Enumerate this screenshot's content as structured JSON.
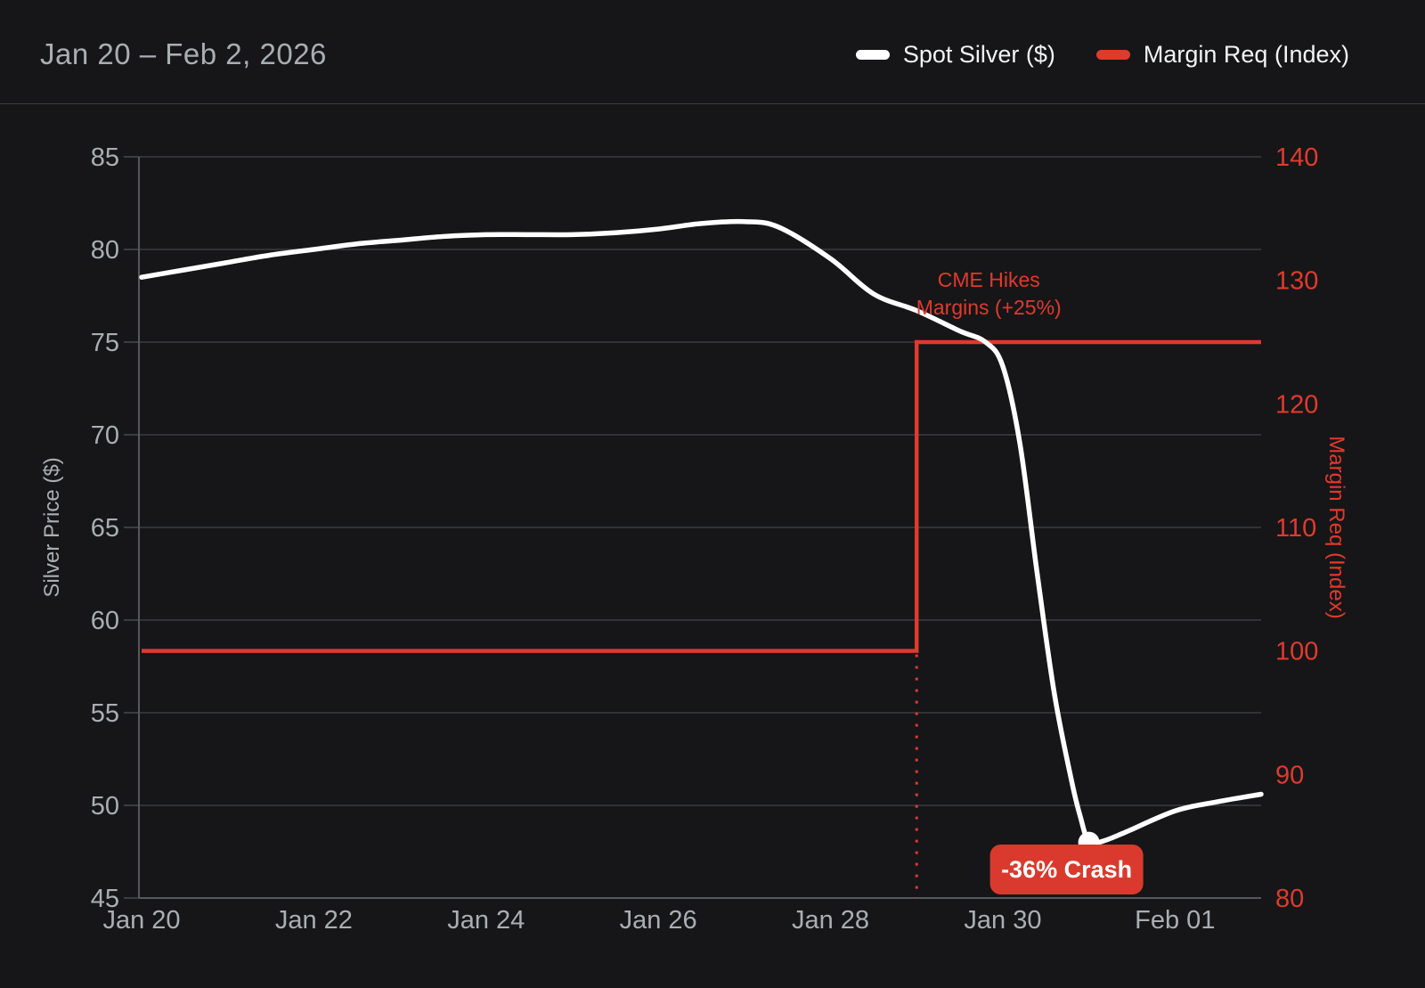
{
  "header": {
    "title": "Jan 20 – Feb 2, 2026",
    "legend": [
      {
        "label": "Spot Silver ($)",
        "color": "#ffffff"
      },
      {
        "label": "Margin Req (Index)",
        "color": "#e03a2c"
      }
    ]
  },
  "colors": {
    "background": "#161618",
    "grid": "#3a3d41",
    "axis_line": "#55585c",
    "tick_text": "#a9aeb4",
    "spot_line": "#ffffff",
    "margin_line": "#e03a2c",
    "annotation_text": "#e03a2c",
    "badge_bg": "#d93a2d",
    "badge_text": "#ffffff"
  },
  "chart_data": {
    "type": "line",
    "title": "Jan 20 – Feb 2, 2026",
    "x_axis": {
      "labels": [
        "Jan 20",
        "Jan 22",
        "Jan 24",
        "Jan 26",
        "Jan 28",
        "Jan 30",
        "Feb 01"
      ],
      "label_days": [
        0,
        2,
        4,
        6,
        8,
        10,
        12
      ],
      "domain_days": [
        0,
        13
      ],
      "start_date": "Jan 20",
      "end_date": "Feb 2"
    },
    "left_axis": {
      "title": "Silver Price ($)",
      "min": 45,
      "max": 85,
      "step": 5,
      "grid": true
    },
    "right_axis": {
      "title": "Margin Req (Index)",
      "min": 80,
      "max": 140,
      "step": 10,
      "grid": false
    },
    "series": [
      {
        "name": "Spot Silver ($)",
        "axis": "left",
        "color": "#ffffff",
        "style": "smooth",
        "points": [
          [
            0,
            78.5
          ],
          [
            0.5,
            78.9
          ],
          [
            1,
            79.3
          ],
          [
            1.5,
            79.7
          ],
          [
            2,
            80.0
          ],
          [
            2.5,
            80.3
          ],
          [
            3,
            80.5
          ],
          [
            3.5,
            80.7
          ],
          [
            4,
            80.8
          ],
          [
            4.5,
            80.8
          ],
          [
            5,
            80.8
          ],
          [
            5.5,
            80.9
          ],
          [
            6,
            81.1
          ],
          [
            6.5,
            81.4
          ],
          [
            7,
            81.5
          ],
          [
            7.4,
            81.2
          ],
          [
            8,
            79.5
          ],
          [
            8.5,
            77.6
          ],
          [
            9,
            76.7
          ],
          [
            9.5,
            75.6
          ],
          [
            9.8,
            75.0
          ],
          [
            10,
            73.7
          ],
          [
            10.2,
            69.5
          ],
          [
            10.4,
            62.5
          ],
          [
            10.6,
            56.0
          ],
          [
            10.8,
            51.3
          ],
          [
            10.9,
            49.4
          ],
          [
            11,
            48.0
          ],
          [
            11.15,
            48.05
          ],
          [
            11.4,
            48.5
          ],
          [
            12,
            49.7
          ],
          [
            12.5,
            50.2
          ],
          [
            13,
            50.6
          ]
        ],
        "daily_close_approx": {
          "Jan 20": 78.5,
          "Jan 21": 79.3,
          "Jan 22": 80.0,
          "Jan 23": 80.5,
          "Jan 24": 80.8,
          "Jan 25": 80.8,
          "Jan 26": 81.1,
          "Jan 27": 81.5,
          "Jan 28": 79.5,
          "Jan 29": 76.7,
          "Jan 30": 73.7,
          "Jan 31": 48.0,
          "Feb 1": 49.7,
          "Feb 2": 50.6
        }
      },
      {
        "name": "Margin Req (Index)",
        "axis": "right",
        "color": "#e03a2c",
        "style": "step",
        "points": [
          [
            0,
            100
          ],
          [
            9,
            100
          ],
          [
            9,
            125
          ],
          [
            13,
            125
          ]
        ],
        "hike_day": 9,
        "dashed_drop_line_day": 9
      }
    ],
    "annotations": {
      "margin_hike": {
        "lines": [
          "CME Hikes",
          "Margins (+25%)"
        ],
        "day": 9,
        "index_level": 125
      },
      "crash": {
        "label": "-36% Crash",
        "day": 11,
        "value": 48,
        "marker": true
      }
    }
  }
}
